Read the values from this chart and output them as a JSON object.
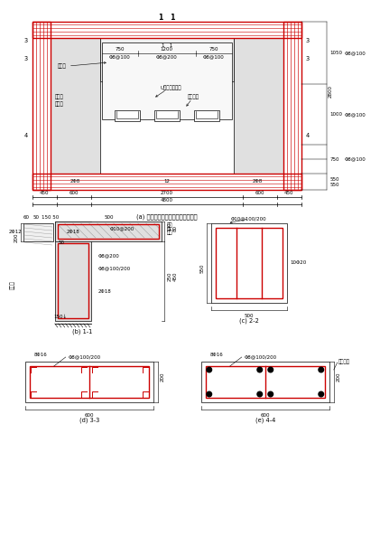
{
  "title_a": "(a) 试件联肢剪力墙部分立面配筋图",
  "title_b": "(b) 1-1",
  "title_c": "(c) 2-2",
  "title_d": "(d) 3-3",
  "title_e": "(e) 4-4",
  "lbl_11": "1   1",
  "lbl_750": "750",
  "lbl_1200": "1200",
  "lbl_phi8_100": "Φ8@100",
  "lbl_phi8_200": "Φ8@200",
  "lbl_ybp": "应变片",
  "lbl_u": "U型钔板消能器",
  "lbl_grout": "灶浆套筒",
  "lbl_hook": "吸气钉",
  "lbl_2phi8": "2Φ8",
  "lbl_450": "450",
  "lbl_600": "600",
  "lbl_2700": "2700",
  "lbl_4800": "4800",
  "lbl_1050": "1050",
  "lbl_1000": "1000",
  "lbl_2800": "2800",
  "lbl_phi8_100b": "Φ8@100",
  "lbl_550": "550",
  "lbl_750b": "750",
  "lbl_60": "60",
  "lbl_50": "50",
  "lbl_150_50": "150 50",
  "lbl_500": "500",
  "lbl_2phi12": "2Φ12",
  "lbl_2phi18": "2Φ18",
  "lbl_phi10_200": "Φ10@200",
  "lbl_cast": "现浇部分",
  "lbl_phi8_200b": "Φ8@200",
  "lbl_phi8_100_200": "Φ8@100/200",
  "lbl_150arr": "150↓",
  "lbl_200": "200",
  "lbl_450b": "450",
  "lbl_250": "250",
  "lbl_80": "80",
  "lbl_120": "120",
  "lbl_phi10_100_200": "Φ10@100/200",
  "lbl_10phi20": "10Φ20",
  "lbl_8phi16": "8Φ16",
  "lbl_phi8_100_200b": "Φ8@100/200",
  "lbl_grout2": "灶浆套筒",
  "lbl_12": "12",
  "lbl_3": "3",
  "lbl_4": "4",
  "red": "#cc0000",
  "black": "#000000",
  "gray": "#999999",
  "gray_fill": "#e0e0e0",
  "white": "#ffffff"
}
